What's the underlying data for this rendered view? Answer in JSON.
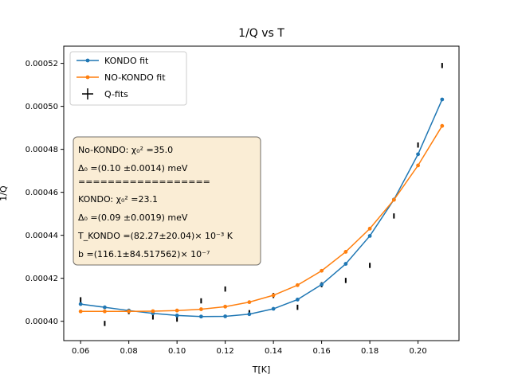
{
  "chart_data": {
    "type": "line",
    "title": "1/Q vs T",
    "xlabel": "T[K]",
    "ylabel": "1/Q",
    "xlim": [
      0.053,
      0.217
    ],
    "ylim": [
      0.000391,
      0.000528
    ],
    "xticks": [
      "0.06",
      "0.08",
      "0.10",
      "0.12",
      "0.14",
      "0.16",
      "0.18",
      "0.20"
    ],
    "xtick_values": [
      0.06,
      0.08,
      0.1,
      0.12,
      0.14,
      0.16,
      0.18,
      0.2
    ],
    "yticks": [
      "0.00040",
      "0.00042",
      "0.00044",
      "0.00046",
      "0.00048",
      "0.00050",
      "0.00052"
    ],
    "ytick_values": [
      0.0004,
      0.00042,
      0.00044,
      0.00046,
      0.00048,
      0.0005,
      0.00052
    ],
    "legend_position": "upper-left",
    "grid": false,
    "x": [
      0.06,
      0.07,
      0.08,
      0.09,
      0.1,
      0.11,
      0.12,
      0.13,
      0.14,
      0.15,
      0.16,
      0.17,
      0.18,
      0.19,
      0.2,
      0.21
    ],
    "series": [
      {
        "name": "KONDO fit",
        "color": "#1f77b4",
        "values": [
          0.000408,
          0.0004065,
          0.000405,
          0.0004037,
          0.0004027,
          0.0004022,
          0.0004023,
          0.0004033,
          0.0004058,
          0.0004101,
          0.0004171,
          0.0004267,
          0.0004397,
          0.0004566,
          0.0004777,
          0.0005032
        ]
      },
      {
        "name": "NO-KONDO fit",
        "color": "#ff7f0e",
        "values": [
          0.0004046,
          0.0004046,
          0.0004046,
          0.0004047,
          0.000405,
          0.0004056,
          0.0004068,
          0.0004089,
          0.0004121,
          0.0004168,
          0.0004235,
          0.0004323,
          0.0004431,
          0.0004565,
          0.0004725,
          0.0004909
        ]
      }
    ],
    "errorbars": {
      "name": "Q-fits",
      "color": "#000000",
      "x": [
        0.06,
        0.07,
        0.08,
        0.09,
        0.1,
        0.11,
        0.12,
        0.13,
        0.14,
        0.15,
        0.16,
        0.17,
        0.18,
        0.19,
        0.2,
        0.21
      ],
      "y": [
        0.00041,
        0.000399,
        0.0004045,
        0.000402,
        0.000401,
        0.0004095,
        0.000415,
        0.000404,
        0.000412,
        0.0004065,
        0.000417,
        0.000419,
        0.000426,
        0.000449,
        0.000482,
        0.000519
      ],
      "halfwidth": 1.2e-06
    },
    "annotation": [
      "No-KONDO: χ₀² =35.0",
      "Δ₀ =(0.10 ±0.0014) meV",
      "==================",
      "KONDO:    χ₀² =23.1",
      "Δ₀ =(0.09 ±0.0019) meV",
      "T_KONDO =(82.27±20.04)× 10⁻³ K",
      "b =(116.1±84.517562)× 10⁻⁷"
    ]
  }
}
